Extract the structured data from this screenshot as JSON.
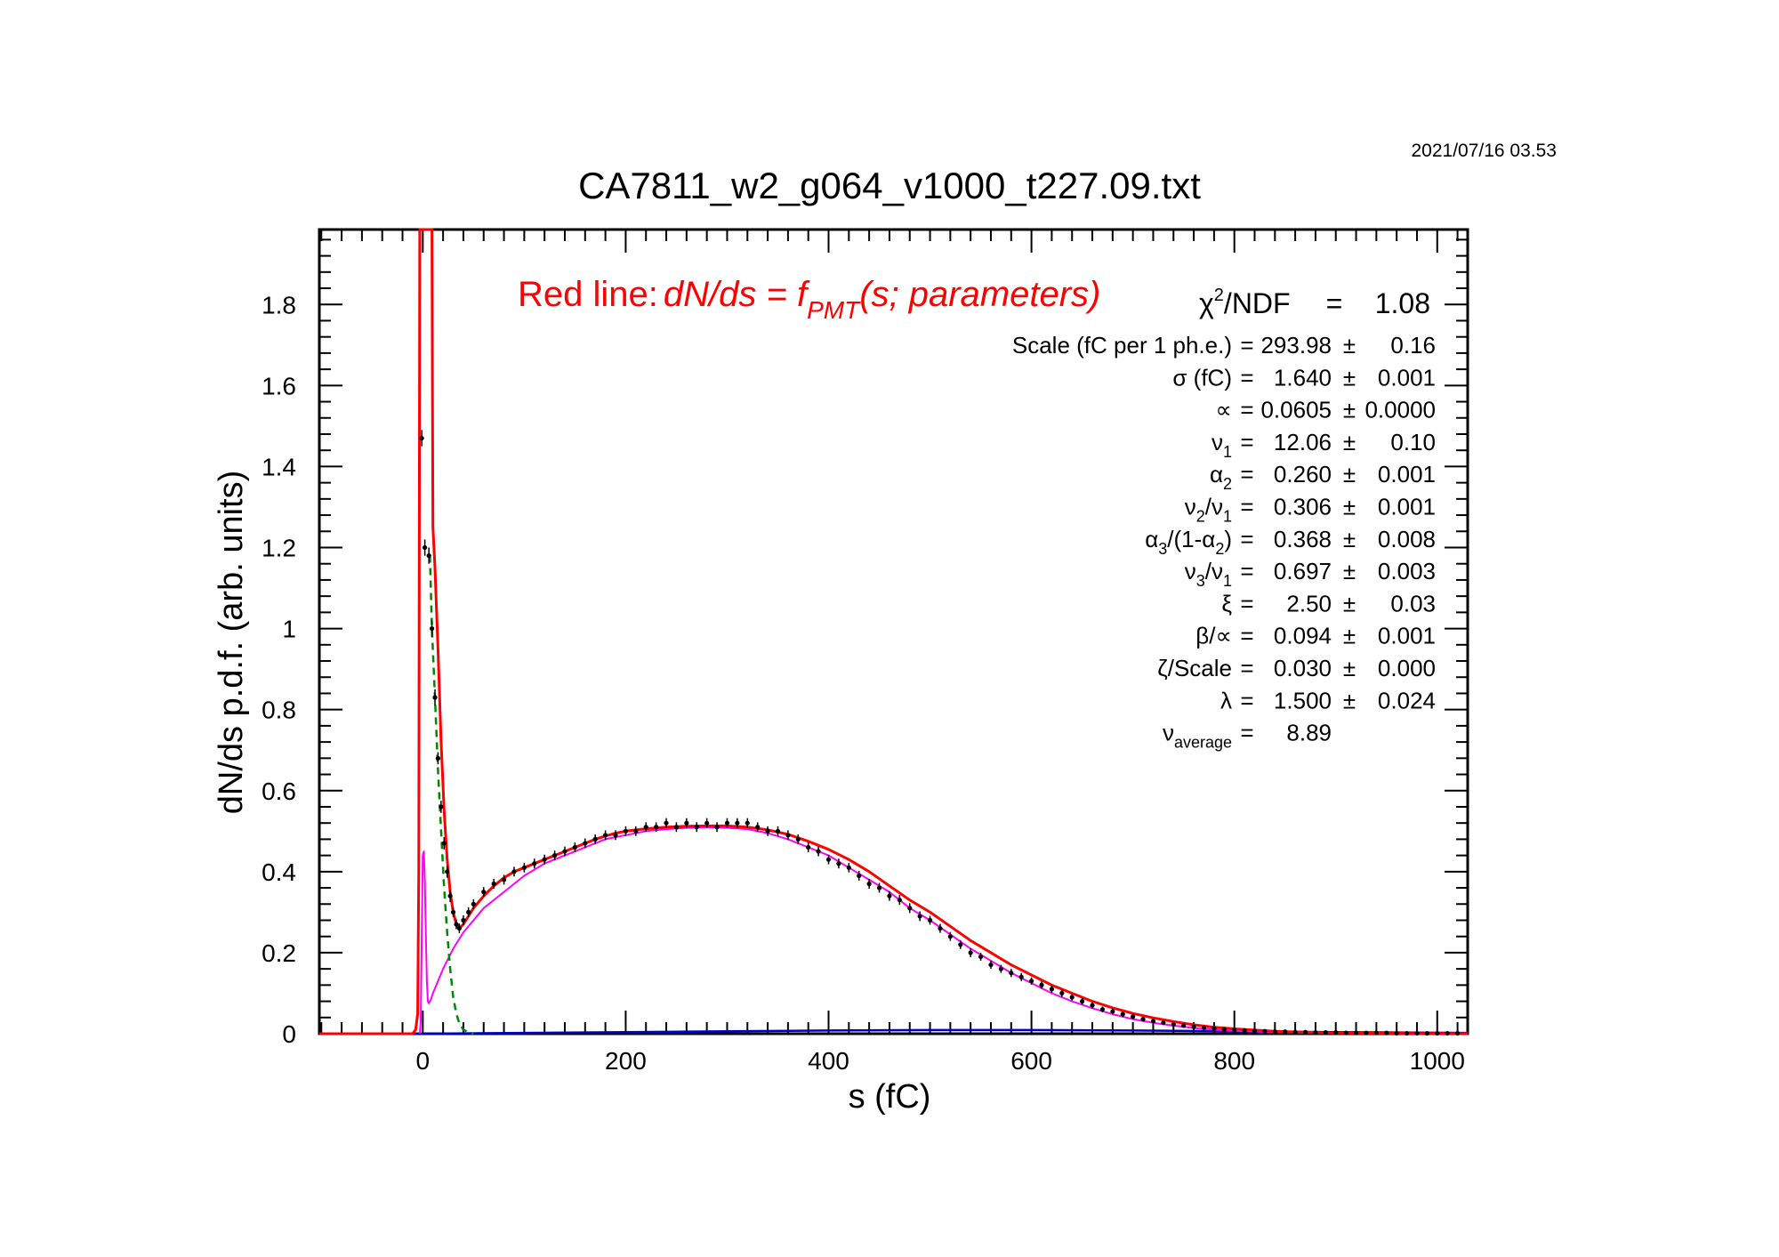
{
  "page": {
    "timestamp": "2021/07/16   03.53"
  },
  "chart_data": {
    "type": "scatter",
    "title": "CA7811_w2_g064_v1000_t227.09.txt",
    "xlabel": "s (fC)",
    "ylabel": "dN/ds p.d.f. (arb. units)",
    "xlim": [
      -102,
      1030
    ],
    "ylim": [
      0,
      1.985
    ],
    "x_ticks": [
      0,
      200,
      400,
      600,
      800,
      1000
    ],
    "x_tick_labels": [
      "0",
      "200",
      "400",
      "600",
      "800",
      "1000"
    ],
    "y_ticks": [
      0,
      0.2,
      0.4,
      0.6,
      0.8,
      1,
      1.2,
      1.4,
      1.6,
      1.8
    ],
    "y_tick_labels": [
      "0",
      "0.2",
      "0.4",
      "0.6",
      "0.8",
      "1",
      "1.2",
      "1.4",
      "1.6",
      "1.8"
    ],
    "grid": false,
    "legend_text": {
      "prefix": "Red line:",
      "formula_main": "dN/ds = f",
      "formula_sub": "PMT",
      "formula_tail": "(s; parameters)"
    },
    "chi2": {
      "label_pre": "χ",
      "label_sup": "2",
      "label_post": "/NDF",
      "eq": "=",
      "value": "1.08"
    },
    "params": [
      {
        "name": [
          [
            "Scale (fC per 1 ph.e.)",
            ""
          ]
        ],
        "eq": "=",
        "value": "293.98",
        "pm": "±",
        "err": "0.16"
      },
      {
        "name": [
          [
            "σ (fC)",
            ""
          ]
        ],
        "eq": "=",
        "value": "1.640",
        "pm": "±",
        "err": "0.001"
      },
      {
        "name": [
          [
            "∝",
            ""
          ]
        ],
        "eq": "=",
        "value": "0.0605",
        "pm": "±",
        "err": "0.0000"
      },
      {
        "name": [
          [
            "ν",
            "1"
          ]
        ],
        "eq": "=",
        "value": "12.06",
        "pm": "±",
        "err": "0.10"
      },
      {
        "name": [
          [
            "α",
            "2"
          ]
        ],
        "eq": "=",
        "value": "0.260",
        "pm": "±",
        "err": "0.001"
      },
      {
        "name": [
          [
            "ν",
            "2"
          ],
          [
            "/ν",
            "1"
          ]
        ],
        "eq": "=",
        "value": "0.306",
        "pm": "±",
        "err": "0.001"
      },
      {
        "name": [
          [
            "α",
            "3"
          ],
          [
            "/(1-α",
            "2"
          ],
          [
            ")",
            ""
          ]
        ],
        "eq": "=",
        "value": "0.368",
        "pm": "±",
        "err": "0.008"
      },
      {
        "name": [
          [
            "ν",
            "3"
          ],
          [
            "/ν",
            "1"
          ]
        ],
        "eq": "=",
        "value": "0.697",
        "pm": "±",
        "err": "0.003"
      },
      {
        "name": [
          [
            "ξ",
            ""
          ]
        ],
        "eq": "=",
        "value": "2.50",
        "pm": "±",
        "err": "0.03"
      },
      {
        "name": [
          [
            "β/∝",
            ""
          ]
        ],
        "eq": "=",
        "value": "0.094",
        "pm": "±",
        "err": "0.001"
      },
      {
        "name": [
          [
            "ζ/Scale",
            ""
          ]
        ],
        "eq": "=",
        "value": "0.030",
        "pm": "±",
        "err": "0.000"
      },
      {
        "name": [
          [
            "λ",
            ""
          ]
        ],
        "eq": "=",
        "value": "1.500",
        "pm": "±",
        "err": "0.024"
      },
      {
        "name": [
          [
            "ν",
            "average"
          ]
        ],
        "eq": "=",
        "value": "8.89",
        "pm": "",
        "err": ""
      }
    ],
    "colors": {
      "frame": "#000000",
      "data": "#000000",
      "fit_total": "#ff0000",
      "pedestal_component": "#008800",
      "signal_component": "#ff00ff",
      "background_component": "#0000cc",
      "legend_text": "#ff0000"
    },
    "series": [
      {
        "key": "data",
        "style": "points_with_error_bars",
        "x": [
          -1,
          2,
          6,
          9,
          12,
          15,
          18,
          21,
          24,
          27,
          30,
          33,
          36,
          40,
          45,
          50,
          60,
          70,
          80,
          90,
          100,
          110,
          120,
          130,
          140,
          150,
          160,
          170,
          180,
          190,
          200,
          210,
          220,
          230,
          240,
          250,
          260,
          270,
          280,
          290,
          300,
          310,
          320,
          330,
          340,
          350,
          360,
          370,
          380,
          390,
          400,
          410,
          420,
          430,
          440,
          450,
          460,
          470,
          480,
          490,
          500,
          510,
          520,
          530,
          540,
          550,
          560,
          570,
          580,
          590,
          600,
          610,
          620,
          630,
          640,
          650,
          660,
          670,
          680,
          690,
          700,
          710,
          720,
          730,
          740,
          750,
          760,
          770,
          780,
          790,
          800,
          810,
          820,
          830,
          840,
          850,
          860,
          870,
          880,
          890,
          900,
          910,
          920,
          930,
          940,
          950,
          960,
          970,
          980,
          990,
          1000,
          1010,
          1020
        ],
        "y": [
          1.47,
          1.2,
          1.18,
          1.0,
          0.83,
          0.68,
          0.56,
          0.47,
          0.4,
          0.34,
          0.3,
          0.27,
          0.26,
          0.28,
          0.3,
          0.32,
          0.35,
          0.37,
          0.38,
          0.4,
          0.41,
          0.42,
          0.43,
          0.44,
          0.45,
          0.46,
          0.47,
          0.48,
          0.49,
          0.49,
          0.5,
          0.5,
          0.51,
          0.51,
          0.52,
          0.51,
          0.52,
          0.51,
          0.52,
          0.51,
          0.52,
          0.52,
          0.52,
          0.51,
          0.5,
          0.5,
          0.49,
          0.48,
          0.46,
          0.45,
          0.43,
          0.42,
          0.41,
          0.39,
          0.37,
          0.36,
          0.34,
          0.33,
          0.31,
          0.29,
          0.28,
          0.26,
          0.24,
          0.22,
          0.2,
          0.19,
          0.17,
          0.16,
          0.15,
          0.14,
          0.13,
          0.12,
          0.11,
          0.1,
          0.09,
          0.08,
          0.07,
          0.06,
          0.055,
          0.048,
          0.042,
          0.036,
          0.031,
          0.027,
          0.023,
          0.02,
          0.017,
          0.015,
          0.013,
          0.011,
          0.009,
          0.008,
          0.007,
          0.006,
          0.005,
          0.005,
          0.004,
          0.004,
          0.003,
          0.003,
          0.003,
          0.002,
          0.002,
          0.002,
          0.002,
          0.002,
          0.001,
          0.001,
          0.001,
          0.001,
          0.001,
          0.001,
          0.001
        ],
        "err": [
          0.02,
          0.02,
          0.02,
          0.02,
          0.02,
          0.015,
          0.015,
          0.015,
          0.015,
          0.015,
          0.012,
          0.012,
          0.012,
          0.012,
          0.012,
          0.012,
          0.012,
          0.012,
          0.012,
          0.012,
          0.012,
          0.012,
          0.012,
          0.012,
          0.012,
          0.012,
          0.012,
          0.012,
          0.012,
          0.012,
          0.012,
          0.012,
          0.012,
          0.012,
          0.012,
          0.012,
          0.012,
          0.012,
          0.012,
          0.012,
          0.012,
          0.012,
          0.012,
          0.012,
          0.012,
          0.012,
          0.012,
          0.012,
          0.012,
          0.012,
          0.012,
          0.012,
          0.012,
          0.012,
          0.012,
          0.012,
          0.012,
          0.012,
          0.012,
          0.012,
          0.011,
          0.011,
          0.011,
          0.011,
          0.011,
          0.01,
          0.01,
          0.01,
          0.01,
          0.01,
          0.009,
          0.009,
          0.009,
          0.009,
          0.008,
          0.008,
          0.008,
          0.007,
          0.007,
          0.007,
          0.006,
          0.006,
          0.006,
          0.005,
          0.005,
          0.005,
          0.004,
          0.004,
          0.004,
          0.004,
          0.003,
          0.003,
          0.003,
          0.003,
          0.003,
          0.003,
          0.002,
          0.002,
          0.002,
          0.002,
          0.002,
          0.002,
          0.002,
          0.002,
          0.002,
          0.002,
          0.002,
          0.002,
          0.002,
          0.002,
          0.002,
          0.002,
          0.002
        ]
      },
      {
        "key": "fit_total",
        "style": "line",
        "x": [
          -102,
          -10,
          -7,
          -5,
          -4,
          -3,
          -2,
          -1,
          0,
          1,
          2,
          3,
          4,
          5,
          6,
          7,
          8,
          9,
          10,
          12,
          15,
          18,
          21,
          24,
          27,
          30,
          33,
          36,
          40,
          45,
          50,
          60,
          70,
          80,
          90,
          100,
          110,
          120,
          130,
          140,
          150,
          160,
          170,
          180,
          190,
          200,
          220,
          240,
          260,
          280,
          300,
          320,
          340,
          360,
          380,
          400,
          420,
          440,
          460,
          480,
          500,
          520,
          540,
          560,
          580,
          600,
          620,
          640,
          660,
          680,
          700,
          720,
          740,
          760,
          780,
          800,
          820,
          840,
          860,
          880,
          900,
          920,
          940,
          960,
          980,
          1000,
          1030
        ],
        "y": [
          0,
          0,
          0.01,
          0.05,
          0.4,
          1.985,
          1.985,
          1.985,
          1.985,
          1.985,
          1.985,
          1.985,
          1.985,
          1.985,
          1.985,
          1.985,
          1.985,
          1.985,
          1.25,
          1.15,
          0.95,
          0.72,
          0.55,
          0.43,
          0.35,
          0.3,
          0.27,
          0.26,
          0.27,
          0.29,
          0.31,
          0.34,
          0.365,
          0.385,
          0.4,
          0.41,
          0.42,
          0.43,
          0.44,
          0.45,
          0.46,
          0.47,
          0.48,
          0.488,
          0.495,
          0.5,
          0.506,
          0.51,
          0.512,
          0.513,
          0.513,
          0.51,
          0.503,
          0.492,
          0.475,
          0.455,
          0.43,
          0.4,
          0.365,
          0.33,
          0.3,
          0.265,
          0.23,
          0.2,
          0.17,
          0.145,
          0.12,
          0.1,
          0.08,
          0.064,
          0.05,
          0.039,
          0.03,
          0.022,
          0.016,
          0.012,
          0.009,
          0.006,
          0.0045,
          0.003,
          0.002,
          0.0015,
          0.001,
          0.0008,
          0.0006,
          0.0005,
          0.0003
        ]
      },
      {
        "key": "pedestal_component",
        "style": "dashed_line",
        "x": [
          7,
          9,
          12,
          15,
          18,
          21,
          24,
          27,
          30,
          33,
          36,
          40,
          45,
          50
        ],
        "y": [
          1.18,
          1.0,
          0.83,
          0.65,
          0.5,
          0.36,
          0.25,
          0.16,
          0.09,
          0.05,
          0.025,
          0.01,
          0.003,
          0.0
        ]
      },
      {
        "key": "signal_component",
        "style": "line",
        "x": [
          -3,
          -2,
          -1,
          0,
          1,
          2,
          3,
          4,
          5,
          6,
          8,
          10,
          15,
          20,
          30,
          40,
          60,
          80,
          100,
          120,
          140,
          160,
          180,
          200,
          220,
          240,
          260,
          280,
          300,
          320,
          340,
          360,
          380,
          400,
          420,
          440,
          460,
          480,
          500,
          520,
          540,
          560,
          580,
          600,
          620,
          640,
          660,
          680,
          700,
          720,
          740,
          760,
          780,
          800,
          850,
          900,
          950,
          1030
        ],
        "y": [
          0.0,
          0.03,
          0.25,
          0.44,
          0.45,
          0.38,
          0.25,
          0.13,
          0.08,
          0.075,
          0.085,
          0.1,
          0.13,
          0.16,
          0.21,
          0.25,
          0.31,
          0.35,
          0.39,
          0.42,
          0.44,
          0.46,
          0.48,
          0.49,
          0.5,
          0.505,
          0.508,
          0.51,
          0.508,
          0.505,
          0.495,
          0.48,
          0.46,
          0.44,
          0.41,
          0.38,
          0.35,
          0.31,
          0.28,
          0.245,
          0.21,
          0.18,
          0.15,
          0.125,
          0.1,
          0.08,
          0.063,
          0.048,
          0.036,
          0.027,
          0.02,
          0.014,
          0.01,
          0.007,
          0.003,
          0.0012,
          0.0005,
          0.0001
        ]
      },
      {
        "key": "background_component",
        "style": "line",
        "x": [
          -102,
          -5,
          0,
          50,
          100,
          200,
          300,
          400,
          500,
          600,
          700,
          800,
          900,
          1030
        ],
        "y": [
          0.0,
          0.0,
          0.0,
          0.001,
          0.002,
          0.004,
          0.006,
          0.008,
          0.009,
          0.009,
          0.008,
          0.006,
          0.004,
          0.002
        ]
      }
    ]
  }
}
